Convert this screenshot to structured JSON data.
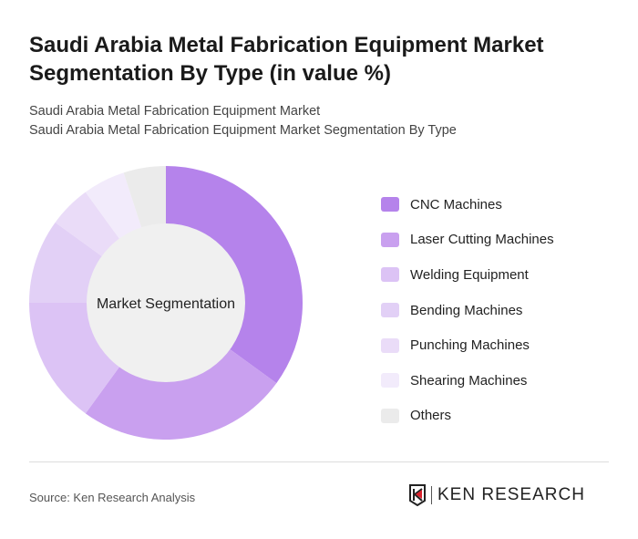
{
  "title": "Saudi Arabia Metal Fabrication Equipment Market Segmentation By Type (in value %)",
  "subtitle1": "Saudi Arabia Metal Fabrication Equipment Market",
  "subtitle2": "Saudi Arabia Metal Fabrication Equipment Market Segmentation By Type",
  "source": "Source: Ken Research Analysis",
  "logo_text": "KEN RESEARCH",
  "chart_data": {
    "type": "pie",
    "donut": true,
    "center_label": "Market Segmentation",
    "legend_position": "right",
    "categories": [
      "CNC Machines",
      "Laser Cutting Machines",
      "Welding Equipment",
      "Bending Machines",
      "Punching Machines",
      "Shearing Machines",
      "Others"
    ],
    "values": [
      35,
      25,
      15,
      10,
      5,
      5,
      5
    ],
    "colors": [
      "#b583eb",
      "#c9a0ef",
      "#dcc3f5",
      "#e2d0f6",
      "#eadcf8",
      "#f2ebfb",
      "#ebebeb"
    ]
  }
}
